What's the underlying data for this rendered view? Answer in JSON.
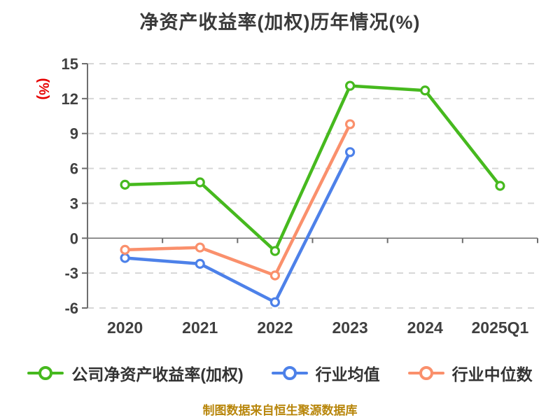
{
  "page": {
    "title": "净资产收益率(加权)历年情况(%)",
    "source_note": "制图数据来自恒生聚源数据库"
  },
  "chart_data": {
    "type": "line",
    "title": "净资产收益率(加权)历年情况(%)",
    "categories": [
      "2020",
      "2021",
      "2022",
      "2023",
      "2024",
      "2025Q1"
    ],
    "series": [
      {
        "name": "公司净资产收益率(加权)",
        "color": "#46b91e",
        "values": [
          4.6,
          4.8,
          -1.1,
          13.1,
          12.7,
          4.5
        ]
      },
      {
        "name": "行业均值",
        "color": "#4d81e9",
        "values": [
          -1.7,
          -2.2,
          -5.5,
          7.4,
          null,
          null
        ]
      },
      {
        "name": "行业中位数",
        "color": "#fa906c",
        "values": [
          -1.0,
          -0.8,
          -3.2,
          9.8,
          null,
          null
        ]
      }
    ],
    "xlabel": "",
    "ylabel": "(%)",
    "ylim": [
      -6,
      15
    ],
    "y_ticks": [
      15,
      12,
      9,
      6,
      3,
      0,
      -3,
      -6
    ],
    "grid": true,
    "gridline_style": "dashed",
    "zero_axis_line": "solid",
    "legend_position": "bottom",
    "marker": "circle-white-fill"
  },
  "colors": {
    "background": "#ffffff",
    "title_text": "#3a3a3a",
    "axis_label_text": "#404040",
    "axis_line": "#6e6e6e",
    "gridline": "#d6d6d6",
    "ylabel_text": "#e60000",
    "legend_text": "#333333",
    "source_text": "#b8860b",
    "marker_fill": "#ffffff"
  }
}
